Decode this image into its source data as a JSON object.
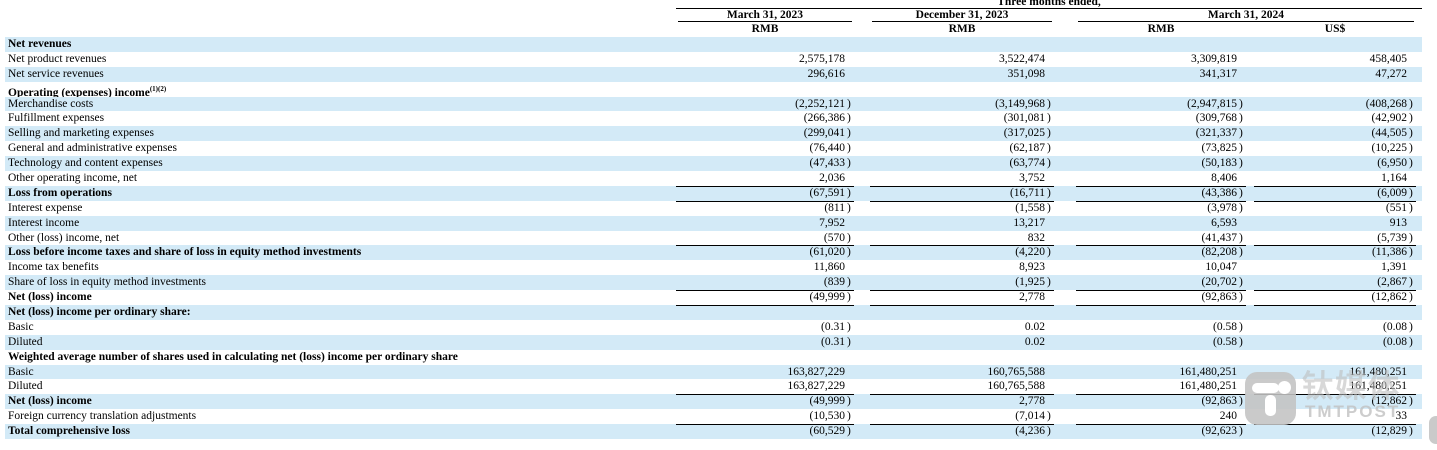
{
  "table": {
    "period_header": "Three months ended,",
    "column_groups": [
      {
        "date": "March 31, 2023",
        "currencies": [
          "RMB"
        ]
      },
      {
        "date": "December 31, 2023",
        "currencies": [
          "RMB"
        ]
      },
      {
        "date": "March 31, 2024",
        "currencies": [
          "RMB",
          "US$"
        ]
      }
    ],
    "currency_row": [
      "RMB",
      "RMB",
      "RMB",
      "US$"
    ],
    "rows": [
      {
        "label": "Net revenues",
        "bold": true,
        "sup": "",
        "underline": false,
        "values": [
          "",
          "",
          "",
          ""
        ]
      },
      {
        "label": "Net product revenues",
        "bold": false,
        "sup": "",
        "underline": false,
        "values": [
          "2,575,178",
          "3,522,474",
          "3,309,819",
          "458,405"
        ]
      },
      {
        "label": "Net service revenues",
        "bold": false,
        "sup": "",
        "underline": false,
        "values": [
          "296,616",
          "351,098",
          "341,317",
          "47,272"
        ]
      },
      {
        "label": "Operating (expenses) income",
        "bold": true,
        "sup": "(1)(2)",
        "underline": false,
        "values": [
          "",
          "",
          "",
          ""
        ]
      },
      {
        "label": "Merchandise costs",
        "bold": false,
        "sup": "",
        "underline": false,
        "values": [
          "(2,252,121)",
          "(3,149,968)",
          "(2,947,815)",
          "(408,268)"
        ]
      },
      {
        "label": "Fulfillment expenses",
        "bold": false,
        "sup": "",
        "underline": false,
        "values": [
          "(266,386)",
          "(301,081)",
          "(309,768)",
          "(42,902)"
        ]
      },
      {
        "label": "Selling and marketing expenses",
        "bold": false,
        "sup": "",
        "underline": false,
        "values": [
          "(299,041)",
          "(317,025)",
          "(321,337)",
          "(44,505)"
        ]
      },
      {
        "label": "General and administrative expenses",
        "bold": false,
        "sup": "",
        "underline": false,
        "values": [
          "(76,440)",
          "(62,187)",
          "(73,825)",
          "(10,225)"
        ]
      },
      {
        "label": "Technology and content expenses",
        "bold": false,
        "sup": "",
        "underline": false,
        "values": [
          "(47,433)",
          "(63,774)",
          "(50,183)",
          "(6,950)"
        ]
      },
      {
        "label": "Other operating income, net",
        "bold": false,
        "sup": "",
        "underline": true,
        "values": [
          "2,036",
          "3,752",
          "8,406",
          "1,164"
        ]
      },
      {
        "label": "Loss from operations",
        "bold": true,
        "sup": "",
        "underline": true,
        "values": [
          "(67,591)",
          "(16,711)",
          "(43,386)",
          "(6,009)"
        ]
      },
      {
        "label": "Interest expense",
        "bold": false,
        "sup": "",
        "underline": false,
        "values": [
          "(811)",
          "(1,558)",
          "(3,978)",
          "(551)"
        ]
      },
      {
        "label": "Interest income",
        "bold": false,
        "sup": "",
        "underline": false,
        "values": [
          "7,952",
          "13,217",
          "6,593",
          "913"
        ]
      },
      {
        "label": "Other (loss) income, net",
        "bold": false,
        "sup": "",
        "underline": true,
        "values": [
          "(570)",
          "832",
          "(41,437)",
          "(5,739)"
        ]
      },
      {
        "label": "Loss before income taxes and share of loss in equity method investments",
        "bold": true,
        "sup": "",
        "underline": false,
        "values": [
          "(61,020)",
          "(4,220)",
          "(82,208)",
          "(11,386)"
        ]
      },
      {
        "label": "Income tax benefits",
        "bold": false,
        "sup": "",
        "underline": false,
        "values": [
          "11,860",
          "8,923",
          "10,047",
          "1,391"
        ]
      },
      {
        "label": "Share of loss in equity method investments",
        "bold": false,
        "sup": "",
        "underline": true,
        "values": [
          "(839)",
          "(1,925)",
          "(20,702)",
          "(2,867)"
        ]
      },
      {
        "label": "Net (loss) income",
        "bold": true,
        "sup": "",
        "underline": true,
        "values": [
          "(49,999)",
          "2,778",
          "(92,863)",
          "(12,862)"
        ]
      },
      {
        "label": "Net (loss) income per ordinary share:",
        "bold": true,
        "sup": "",
        "underline": false,
        "values": [
          "",
          "",
          "",
          ""
        ]
      },
      {
        "label": "Basic",
        "bold": false,
        "sup": "",
        "underline": false,
        "values": [
          "(0.31)",
          "0.02",
          "(0.58)",
          "(0.08)"
        ]
      },
      {
        "label": "Diluted",
        "bold": false,
        "sup": "",
        "underline": false,
        "values": [
          "(0.31)",
          "0.02",
          "(0.58)",
          "(0.08)"
        ]
      },
      {
        "label": "Weighted average number of shares used in calculating net (loss) income per ordinary share",
        "bold": true,
        "sup": "",
        "underline": false,
        "values": [
          "",
          "",
          "",
          ""
        ]
      },
      {
        "label": "Basic",
        "bold": false,
        "sup": "",
        "underline": false,
        "values": [
          "163,827,229",
          "160,765,588",
          "161,480,251",
          "161,480,251"
        ]
      },
      {
        "label": "Diluted",
        "bold": false,
        "sup": "",
        "underline": true,
        "values": [
          "163,827,229",
          "160,765,588",
          "161,480,251",
          "161,480,251"
        ]
      },
      {
        "label": "Net (loss) income",
        "bold": true,
        "sup": "",
        "underline": false,
        "values": [
          "(49,999)",
          "2,778",
          "(92,863)",
          "(12,862)"
        ]
      },
      {
        "label": "Foreign currency translation adjustments",
        "bold": false,
        "sup": "",
        "underline": true,
        "values": [
          "(10,530)",
          "(7,014)",
          "240",
          "33"
        ]
      },
      {
        "label": "Total comprehensive loss",
        "bold": true,
        "sup": "",
        "underline": false,
        "values": [
          "(60,529)",
          "(4,236)",
          "(92,623)",
          "(12,829)"
        ]
      }
    ]
  },
  "watermark": {
    "cn": "钛媒体",
    "en": "TMTPOST"
  },
  "colors": {
    "row_highlight": "#d3eaf7",
    "line": "#000000",
    "watermark_gray": "#c3c3c3"
  }
}
